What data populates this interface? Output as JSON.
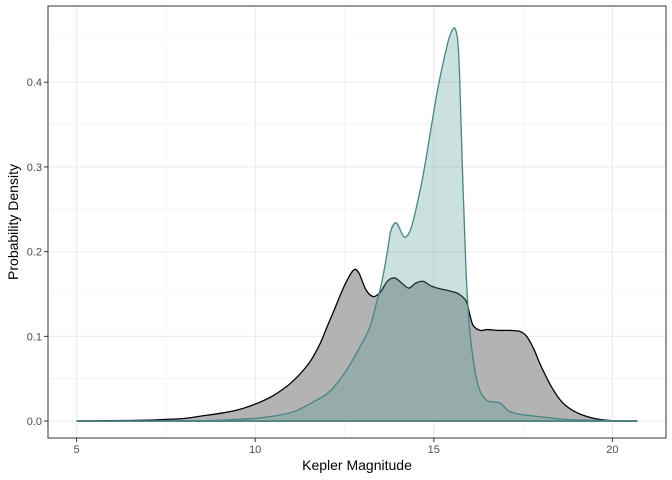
{
  "chart_data": {
    "type": "area",
    "title": "",
    "xlabel": "Kepler Magnitude",
    "ylabel": "Probability Density",
    "xlim": [
      4.2,
      21.5
    ],
    "ylim": [
      -0.02,
      0.49
    ],
    "x_ticks": [
      5,
      10,
      15,
      20
    ],
    "x_tick_labels": [
      "5",
      "10",
      "15",
      "20"
    ],
    "y_ticks": [
      0.0,
      0.1,
      0.2,
      0.3,
      0.4
    ],
    "y_tick_labels": [
      "0.0",
      "0.1",
      "0.2",
      "0.3",
      "0.4"
    ],
    "grid": true,
    "legend": "none",
    "series": [
      {
        "fill": "#b3b3b3",
        "stroke": "#000000",
        "points": [
          [
            5.0,
            0.0
          ],
          [
            6.0,
            0.0005
          ],
          [
            7.0,
            0.001
          ],
          [
            7.5,
            0.002
          ],
          [
            8.0,
            0.003
          ],
          [
            8.5,
            0.006
          ],
          [
            9.0,
            0.009
          ],
          [
            9.5,
            0.013
          ],
          [
            10.0,
            0.02
          ],
          [
            10.5,
            0.03
          ],
          [
            11.0,
            0.045
          ],
          [
            11.5,
            0.068
          ],
          [
            11.8,
            0.09
          ],
          [
            12.0,
            0.11
          ],
          [
            12.2,
            0.13
          ],
          [
            12.5,
            0.16
          ],
          [
            12.75,
            0.178
          ],
          [
            12.9,
            0.175
          ],
          [
            13.1,
            0.155
          ],
          [
            13.3,
            0.147
          ],
          [
            13.5,
            0.152
          ],
          [
            13.7,
            0.165
          ],
          [
            13.9,
            0.169
          ],
          [
            14.1,
            0.163
          ],
          [
            14.3,
            0.157
          ],
          [
            14.5,
            0.163
          ],
          [
            14.7,
            0.165
          ],
          [
            14.9,
            0.16
          ],
          [
            15.1,
            0.157
          ],
          [
            15.3,
            0.155
          ],
          [
            15.5,
            0.153
          ],
          [
            15.7,
            0.15
          ],
          [
            15.9,
            0.142
          ],
          [
            16.0,
            0.127
          ],
          [
            16.1,
            0.113
          ],
          [
            16.3,
            0.107
          ],
          [
            16.5,
            0.108
          ],
          [
            16.8,
            0.107
          ],
          [
            17.1,
            0.107
          ],
          [
            17.4,
            0.106
          ],
          [
            17.6,
            0.1
          ],
          [
            17.8,
            0.085
          ],
          [
            18.0,
            0.065
          ],
          [
            18.3,
            0.04
          ],
          [
            18.6,
            0.022
          ],
          [
            19.0,
            0.01
          ],
          [
            19.5,
            0.003
          ],
          [
            20.0,
            0.0005
          ],
          [
            20.7,
            0.0
          ]
        ]
      },
      {
        "fill": "#4f9b96",
        "fill_opacity": 0.3,
        "stroke": "#4a8583",
        "points": [
          [
            5.0,
            0.0
          ],
          [
            8.5,
            0.0005
          ],
          [
            9.5,
            0.002
          ],
          [
            10.2,
            0.004
          ],
          [
            10.8,
            0.008
          ],
          [
            11.2,
            0.013
          ],
          [
            11.6,
            0.022
          ],
          [
            12.0,
            0.032
          ],
          [
            12.3,
            0.045
          ],
          [
            12.6,
            0.063
          ],
          [
            12.9,
            0.085
          ],
          [
            13.2,
            0.11
          ],
          [
            13.4,
            0.14
          ],
          [
            13.55,
            0.165
          ],
          [
            13.7,
            0.2
          ],
          [
            13.8,
            0.225
          ],
          [
            13.95,
            0.234
          ],
          [
            14.1,
            0.222
          ],
          [
            14.2,
            0.217
          ],
          [
            14.35,
            0.226
          ],
          [
            14.5,
            0.25
          ],
          [
            14.7,
            0.29
          ],
          [
            14.9,
            0.34
          ],
          [
            15.1,
            0.39
          ],
          [
            15.3,
            0.43
          ],
          [
            15.45,
            0.455
          ],
          [
            15.6,
            0.463
          ],
          [
            15.7,
            0.43
          ],
          [
            15.8,
            0.3
          ],
          [
            15.9,
            0.18
          ],
          [
            16.0,
            0.11
          ],
          [
            16.15,
            0.06
          ],
          [
            16.3,
            0.035
          ],
          [
            16.5,
            0.024
          ],
          [
            16.8,
            0.022
          ],
          [
            16.9,
            0.02
          ],
          [
            17.1,
            0.012
          ],
          [
            17.4,
            0.008
          ],
          [
            17.8,
            0.006
          ],
          [
            18.2,
            0.004
          ],
          [
            18.7,
            0.002
          ],
          [
            19.3,
            0.001
          ],
          [
            20.7,
            0.0
          ]
        ]
      }
    ]
  }
}
